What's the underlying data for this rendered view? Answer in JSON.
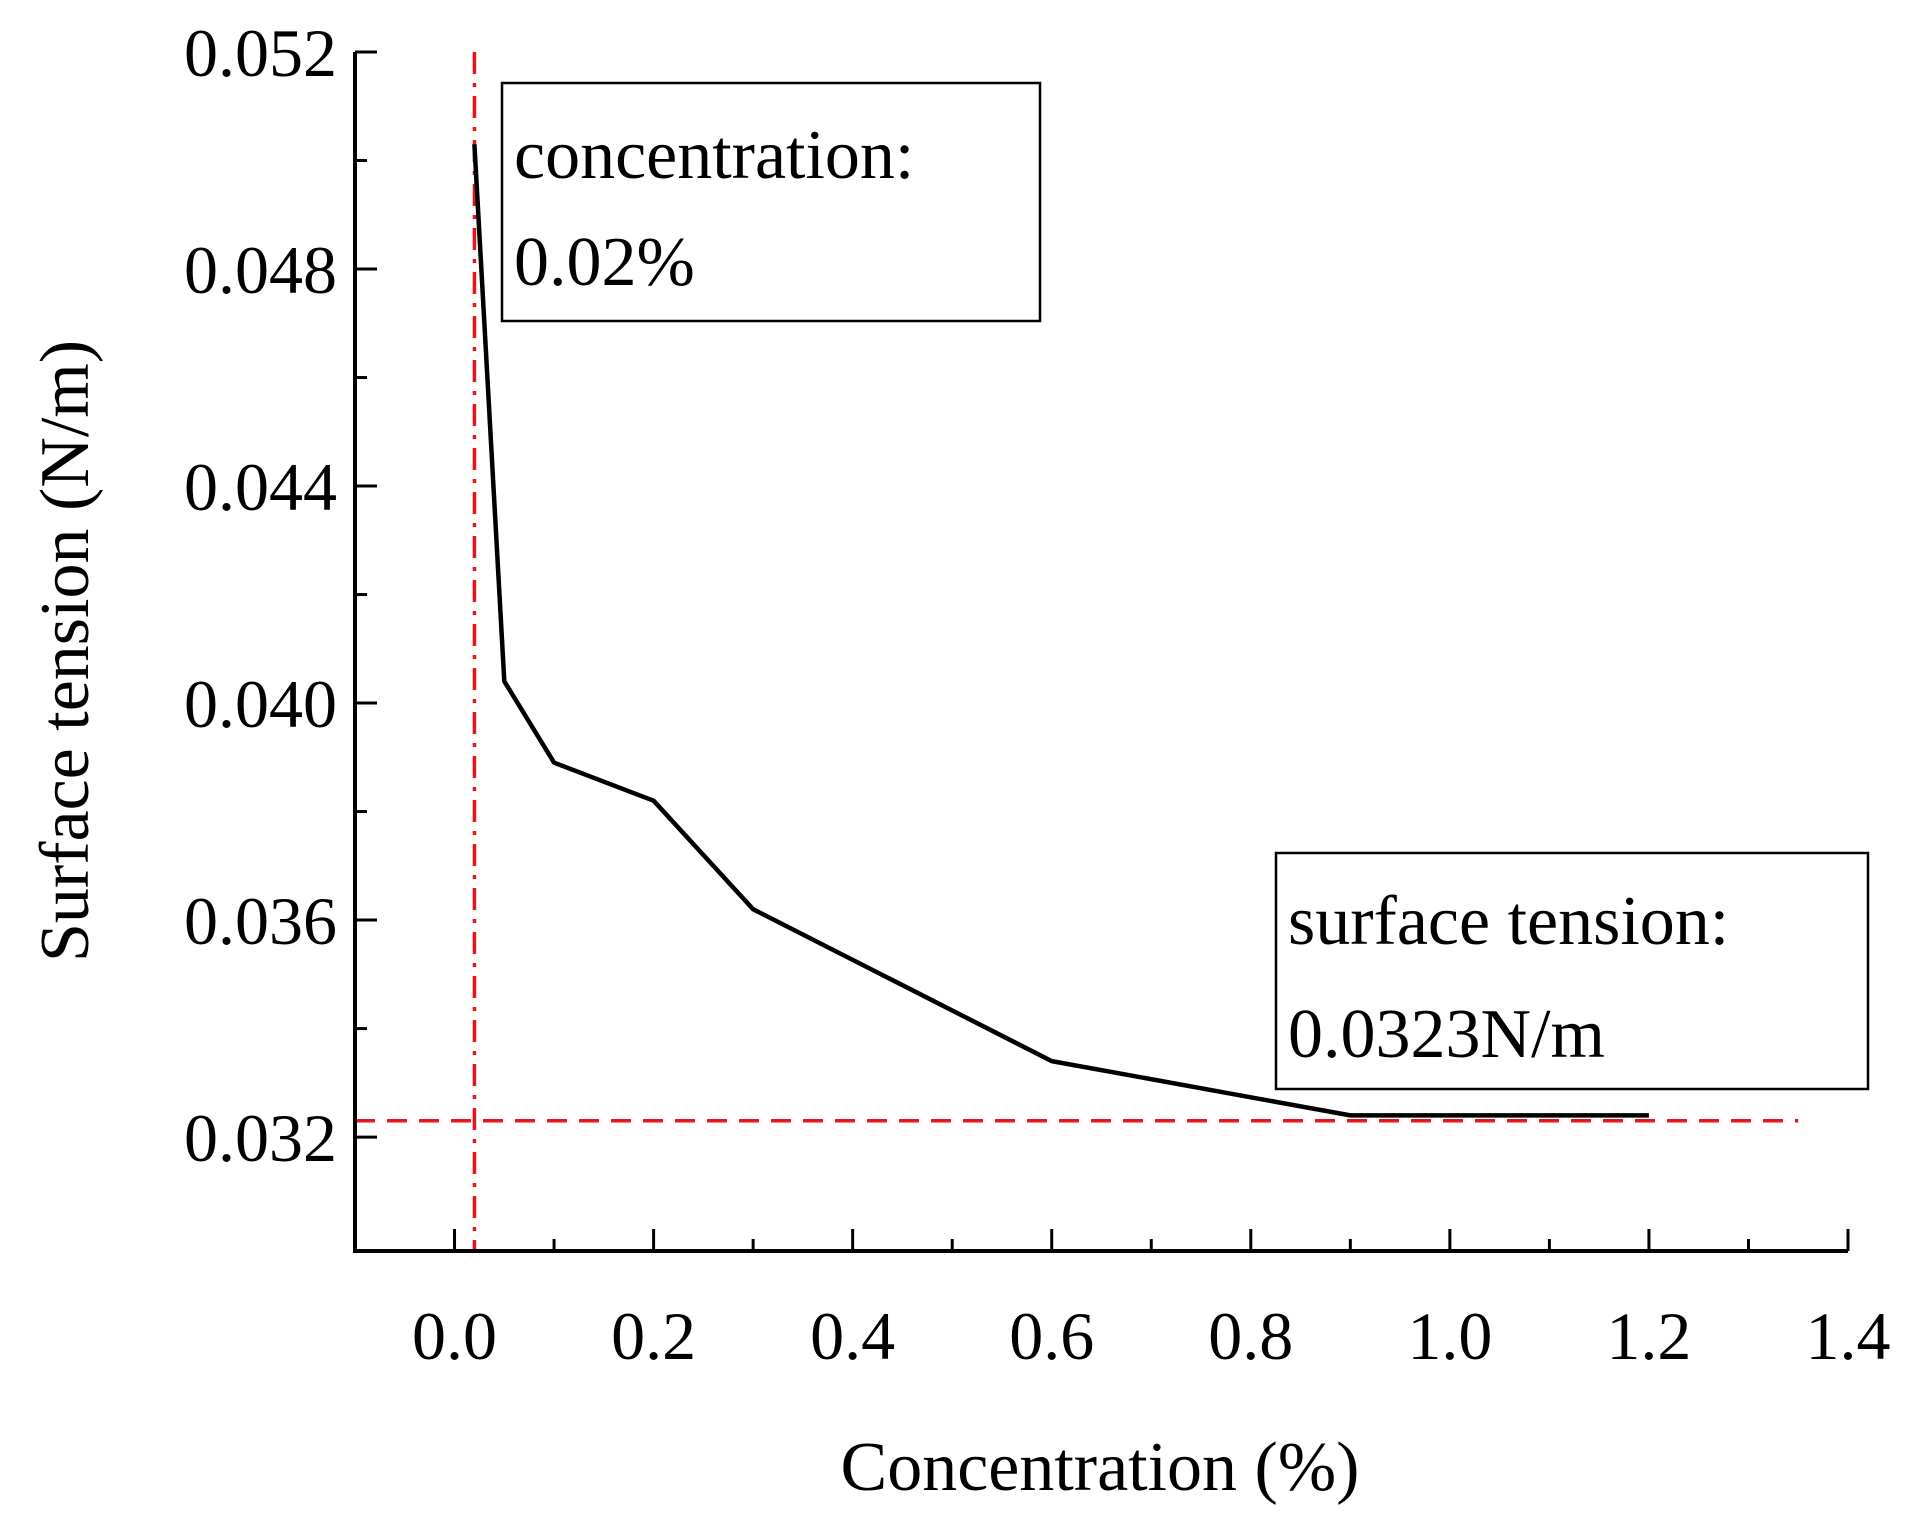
{
  "chart_data": {
    "type": "line",
    "title": "",
    "xlabel": "Concentration (%)",
    "ylabel": "Surface tension (N/m)",
    "xlim": [
      -0.1,
      1.4
    ],
    "ylim": [
      0.0299,
      0.052
    ],
    "x_ticks": [
      0.0,
      0.2,
      0.4,
      0.6,
      0.8,
      1.0,
      1.2,
      1.4
    ],
    "x_tick_labels": [
      "0.0",
      "0.2",
      "0.4",
      "0.6",
      "0.8",
      "1.0",
      "1.2",
      "1.4"
    ],
    "y_ticks": [
      0.032,
      0.036,
      0.04,
      0.044,
      0.048,
      0.052
    ],
    "y_tick_labels": [
      "0.032",
      "0.036",
      "0.040",
      "0.044",
      "0.048",
      "0.052"
    ],
    "series": [
      {
        "name": "Surface tension",
        "color": "#000000",
        "x": [
          0.02,
          0.05,
          0.1,
          0.2,
          0.3,
          0.6,
          0.9,
          1.2
        ],
        "y": [
          0.0503,
          0.0404,
          0.0389,
          0.0382,
          0.0362,
          0.0334,
          0.0324,
          0.0324
        ]
      }
    ],
    "reference_lines": [
      {
        "orientation": "vertical",
        "value": 0.02,
        "style": "dash-dot",
        "color": "#e8141b"
      },
      {
        "orientation": "horizontal",
        "value": 0.0323,
        "style": "dashed",
        "color": "#e8141b"
      }
    ],
    "annotations": [
      {
        "line1": "concentration:",
        "line2": "0.02%",
        "position": "top-left"
      },
      {
        "line1": "surface tension:",
        "line2": "0.0323N/m",
        "position": "bottom-right"
      }
    ]
  }
}
